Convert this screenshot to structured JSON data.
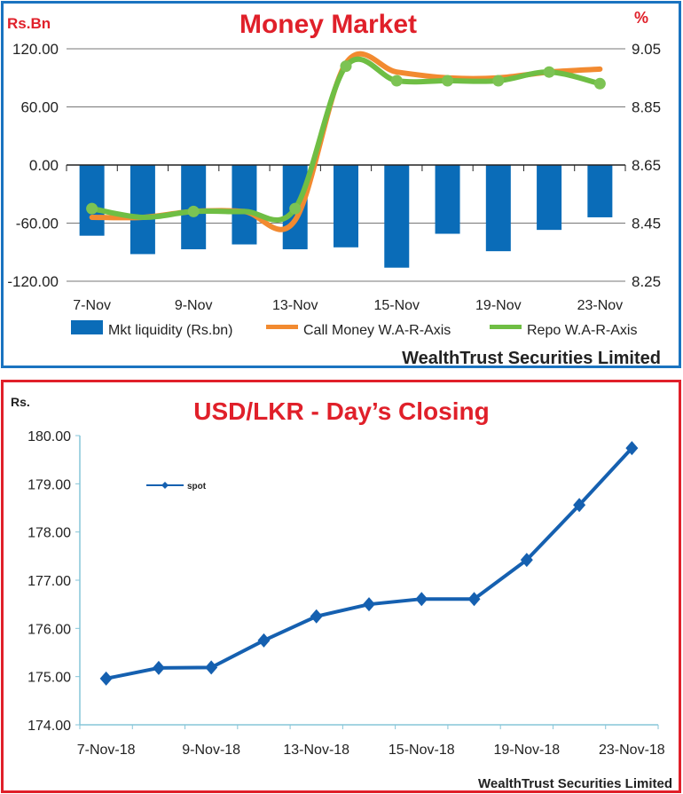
{
  "chart_data": [
    {
      "type": "bar+line",
      "title": "Money Market",
      "ylabel_left": "Rs.Bn",
      "ylabel_right": "%",
      "x_tick_labels": [
        "7-Nov",
        "9-Nov",
        "13-Nov",
        "15-Nov",
        "19-Nov",
        "23-Nov"
      ],
      "y_left_ticks": [
        "120.00",
        "60.00",
        "0.00",
        "-60.00",
        "-120.00"
      ],
      "y_right_ticks": [
        "9.05",
        "8.85",
        "8.65",
        "8.45",
        "8.25"
      ],
      "ylim_left": [
        -120,
        120
      ],
      "ylim_right": [
        8.25,
        9.05
      ],
      "grid": true,
      "legend_position": "bottom",
      "series": [
        {
          "name": "Mkt liquidity (Rs.bn)",
          "kind": "bar",
          "axis": "left",
          "color": "#0a6cb8",
          "values": [
            -73,
            -92,
            -87,
            -82,
            -87,
            -85,
            -106,
            -71,
            -89,
            -67,
            -54
          ]
        },
        {
          "name": "Call Money W.A-R-Axis",
          "kind": "line",
          "axis": "right",
          "color": "#f28a30",
          "values": [
            8.47,
            8.47,
            8.49,
            8.49,
            8.46,
            9.0,
            8.97,
            8.95,
            8.95,
            8.97,
            8.98
          ]
        },
        {
          "name": "Repo W.A-R-Axis",
          "kind": "line",
          "axis": "right",
          "color": "#6fbe44",
          "values": [
            8.5,
            8.47,
            8.49,
            8.49,
            8.5,
            8.99,
            8.94,
            8.94,
            8.94,
            8.97,
            8.93
          ]
        }
      ],
      "footer": "WealthTrust Securities Limited"
    },
    {
      "type": "line",
      "title": "USD/LKR - Day’s Closing",
      "ylabel": "Rs.",
      "x_tick_labels": [
        "7-Nov-18",
        "9-Nov-18",
        "13-Nov-18",
        "15-Nov-18",
        "19-Nov-18",
        "23-Nov-18"
      ],
      "y_ticks": [
        "180.00",
        "179.00",
        "178.00",
        "177.00",
        "176.00",
        "175.00",
        "174.00"
      ],
      "ylim": [
        174,
        180
      ],
      "grid": false,
      "legend_position": "top-left",
      "series": [
        {
          "name": "spot",
          "color": "#1560b0",
          "values": [
            174.96,
            175.18,
            175.19,
            175.75,
            176.25,
            176.5,
            176.61,
            176.61,
            177.42,
            178.56,
            179.74
          ]
        }
      ],
      "footer": "WealthTrust Securities Limited"
    }
  ]
}
